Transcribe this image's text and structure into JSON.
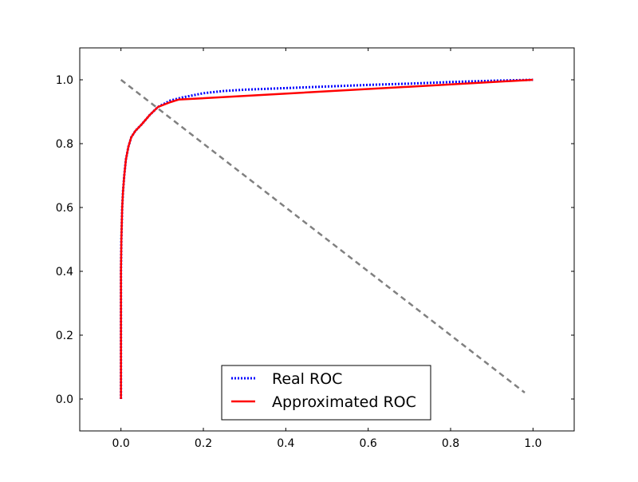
{
  "chart_data": {
    "type": "line",
    "title": "",
    "xlabel": "",
    "ylabel": "",
    "xlim": [
      -0.1,
      1.1
    ],
    "ylim": [
      -0.1,
      1.1
    ],
    "x_ticks": [
      0.0,
      0.2,
      0.4,
      0.6,
      0.8,
      1.0
    ],
    "x_tick_labels": [
      "0.0",
      "0.2",
      "0.4",
      "0.6",
      "0.8",
      "1.0"
    ],
    "y_ticks": [
      0.0,
      0.2,
      0.4,
      0.6,
      0.8,
      1.0
    ],
    "y_tick_labels": [
      "0.0",
      "0.2",
      "0.4",
      "0.6",
      "0.8",
      "1.0"
    ],
    "grid": false,
    "legend_position": "lower center",
    "series": [
      {
        "name": "Real ROC",
        "color": "#0000ff",
        "style": "dotted",
        "x": [
          0.0,
          0.0,
          0.0,
          0.0,
          0.0,
          0.001,
          0.002,
          0.003,
          0.005,
          0.008,
          0.012,
          0.018,
          0.025,
          0.035,
          0.05,
          0.07,
          0.09,
          0.12,
          0.15,
          0.2,
          0.25,
          0.3,
          0.4,
          0.5,
          0.6,
          0.7,
          0.8,
          0.9,
          1.0
        ],
        "y": [
          0.0,
          0.1,
          0.2,
          0.3,
          0.4,
          0.5,
          0.55,
          0.6,
          0.65,
          0.7,
          0.75,
          0.79,
          0.82,
          0.84,
          0.86,
          0.89,
          0.915,
          0.935,
          0.945,
          0.958,
          0.965,
          0.969,
          0.974,
          0.979,
          0.984,
          0.988,
          0.993,
          0.997,
          1.0
        ]
      },
      {
        "name": "Approximated ROC",
        "color": "#ff0000",
        "style": "solid",
        "x": [
          0.0,
          0.0,
          0.0,
          0.0,
          0.0,
          0.001,
          0.002,
          0.003,
          0.005,
          0.008,
          0.012,
          0.018,
          0.025,
          0.035,
          0.05,
          0.07,
          0.09,
          0.12,
          0.14,
          1.0
        ],
        "y": [
          0.0,
          0.1,
          0.2,
          0.3,
          0.4,
          0.5,
          0.55,
          0.6,
          0.65,
          0.7,
          0.75,
          0.79,
          0.82,
          0.84,
          0.86,
          0.89,
          0.915,
          0.93,
          0.938,
          1.0
        ]
      },
      {
        "color": "#808080",
        "style": "dashed",
        "x": [
          0.0,
          0.98
        ],
        "y": [
          1.0,
          0.02
        ]
      }
    ]
  }
}
